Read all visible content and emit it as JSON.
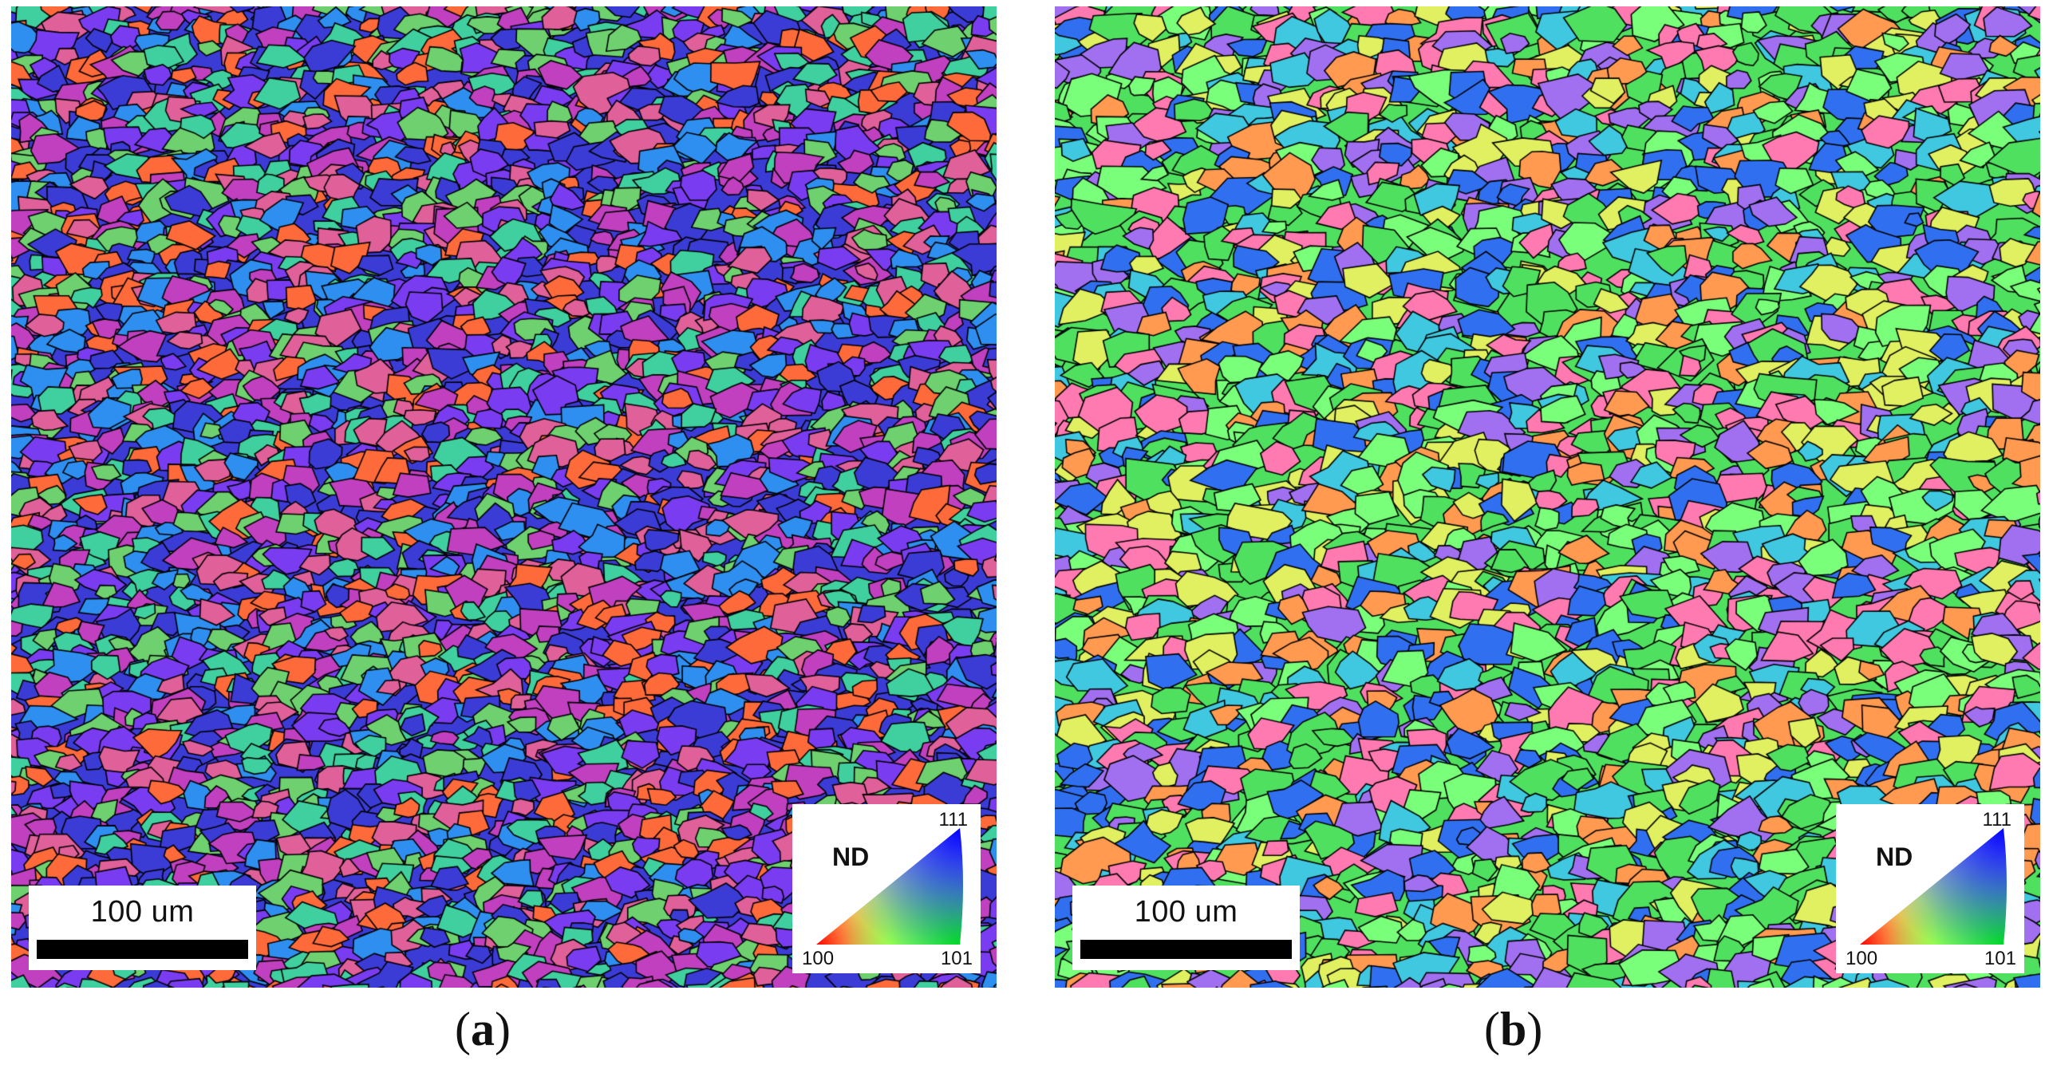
{
  "panels": [
    {
      "id": "a",
      "scale_bar": "100 um",
      "legend": {
        "title": "ND",
        "corner_top": "111",
        "corner_left": "100",
        "corner_right": "101"
      },
      "caption_open": "(",
      "caption_letter": "a",
      "caption_close": ")"
    },
    {
      "id": "b",
      "scale_bar": "100 um",
      "legend": {
        "title": "ND",
        "corner_top": "111",
        "corner_left": "100",
        "corner_right": "101"
      },
      "caption_open": "(",
      "caption_letter": "b",
      "caption_close": ")"
    }
  ],
  "colors": {
    "ipf_100": "#ff0000",
    "ipf_101": "#00ff00",
    "ipf_111": "#0000ff",
    "grain_boundary": "#000000",
    "panel_a_dominant": [
      "#3b3bd6",
      "#7a3cf0",
      "#2f8ff0",
      "#c040c0",
      "#ff6a3a",
      "#40d0a0",
      "#e0609a",
      "#6fd070"
    ],
    "panel_b_dominant": [
      "#50e060",
      "#40c8e0",
      "#7aff7a",
      "#ff7ab0",
      "#a070f0",
      "#ff9a50",
      "#3070f0",
      "#e0f060"
    ]
  }
}
